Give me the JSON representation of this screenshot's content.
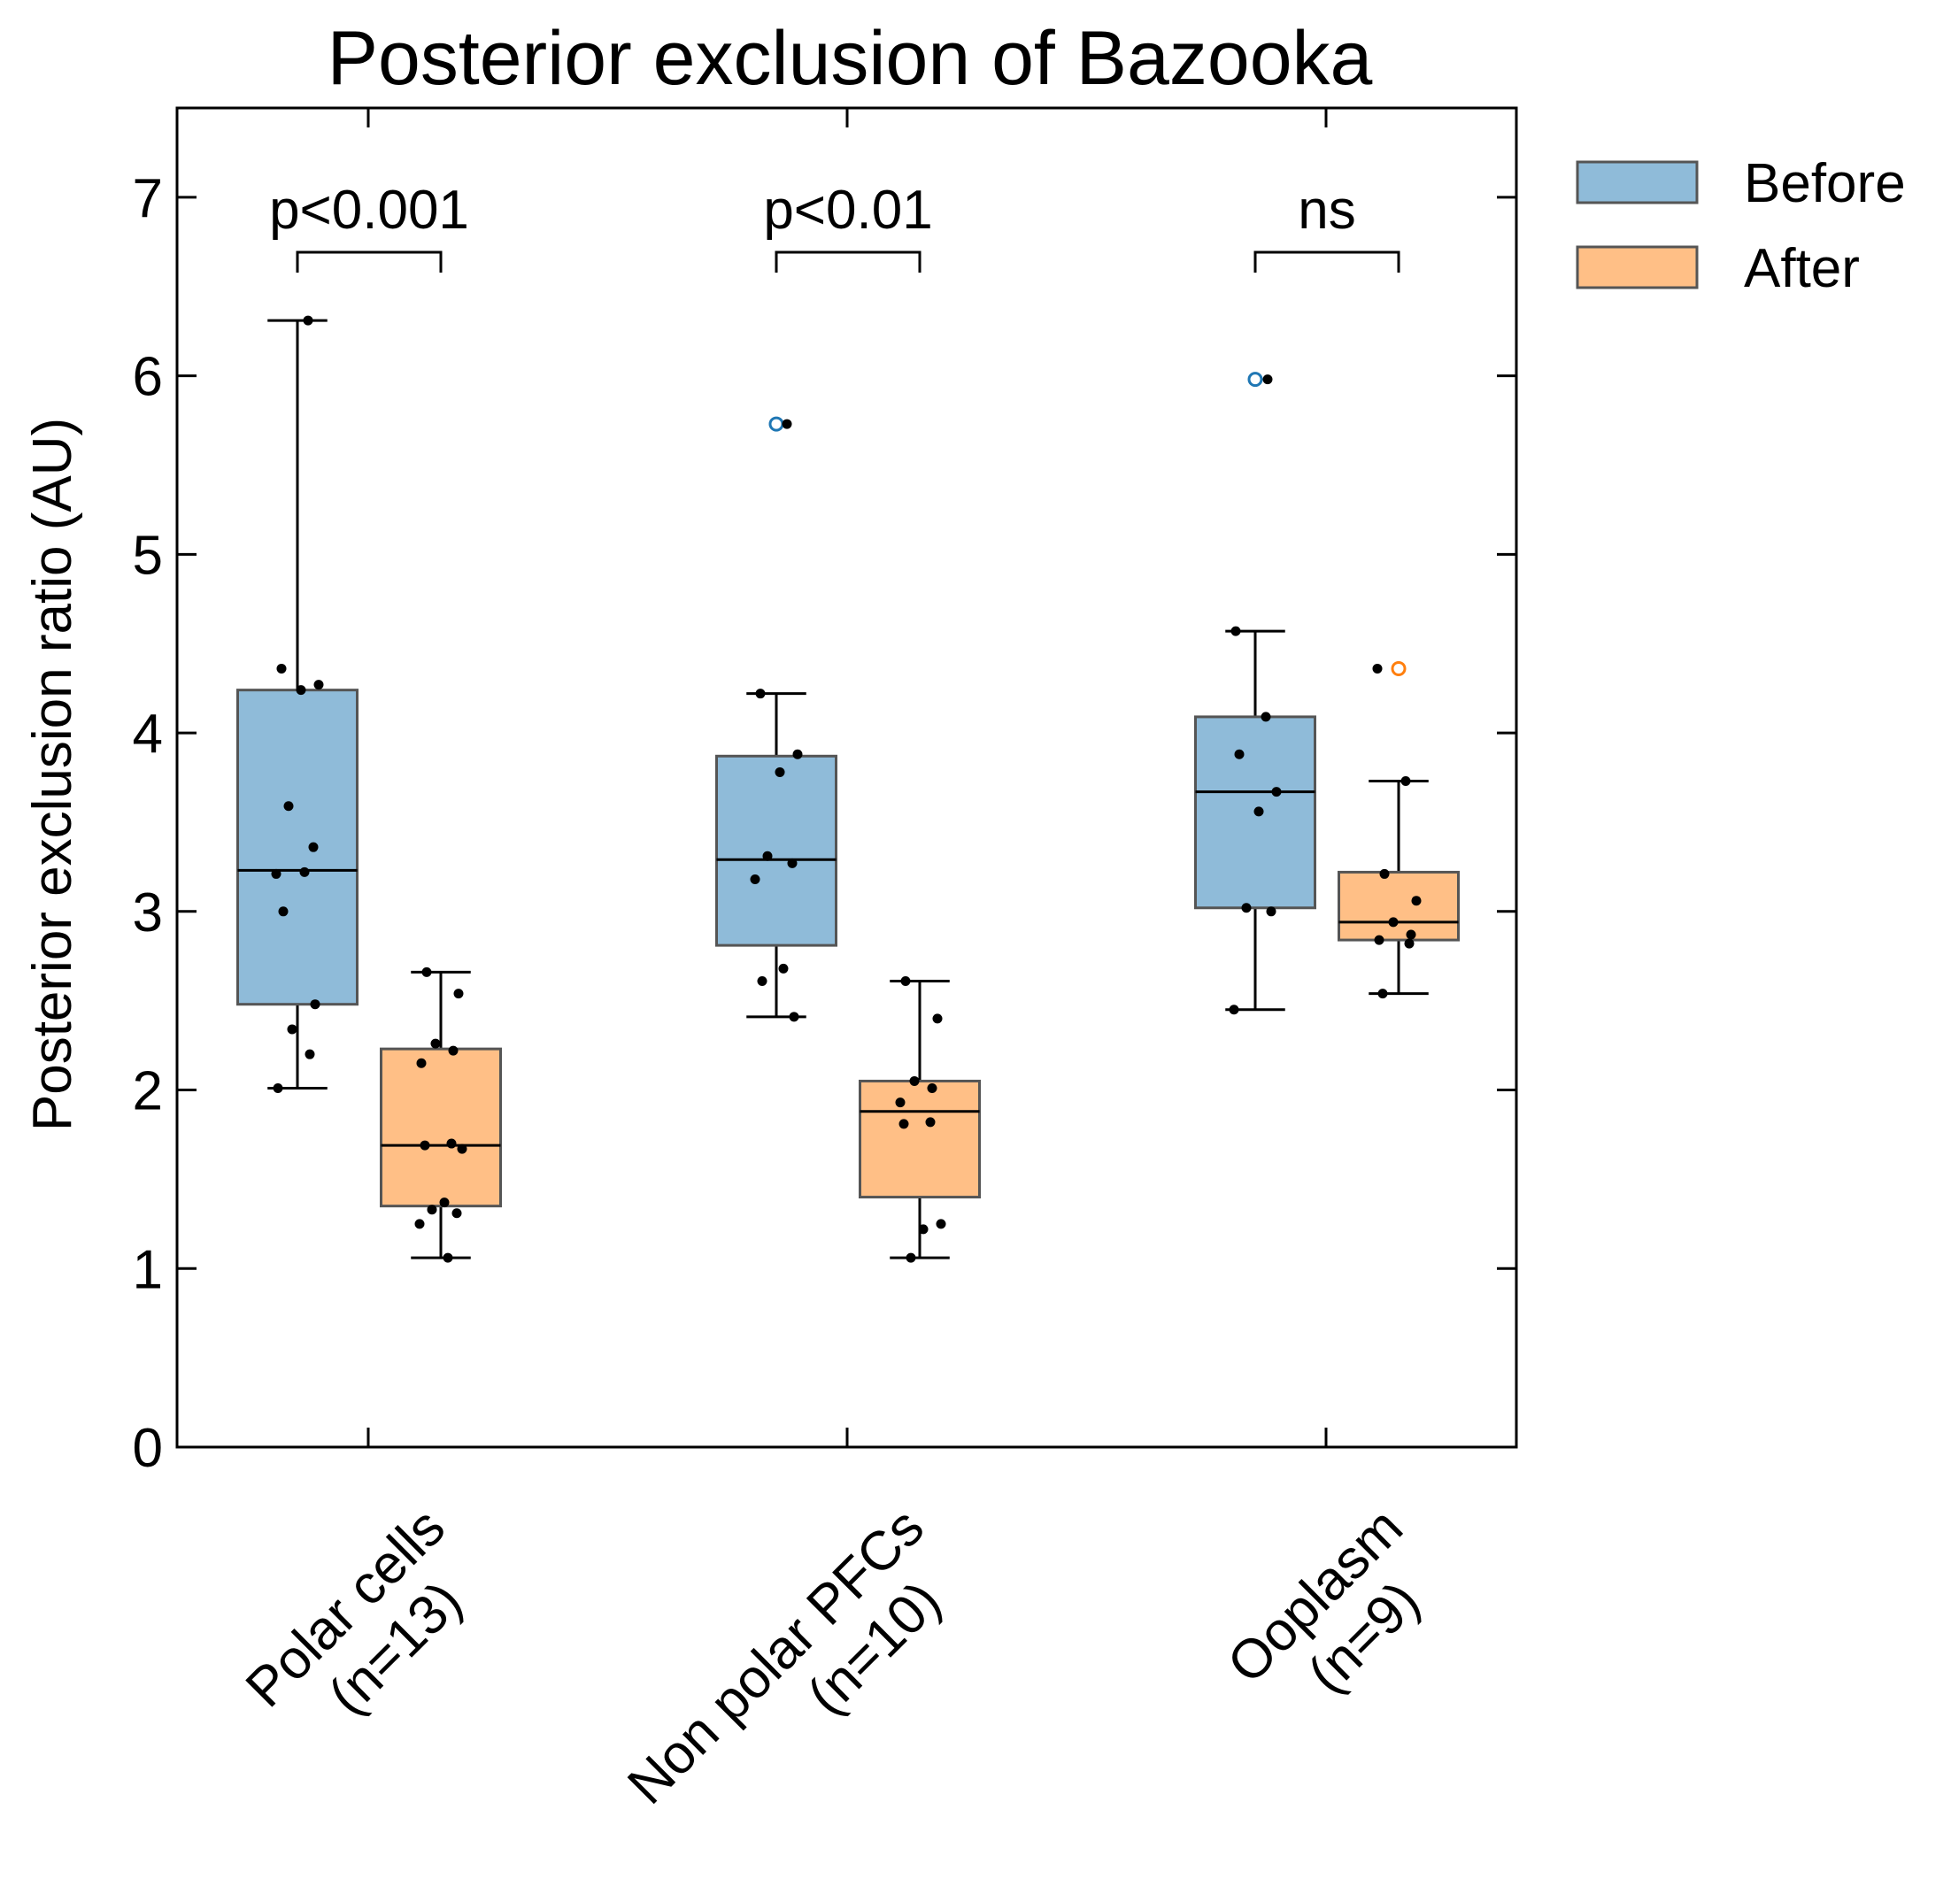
{
  "chart_data": {
    "type": "box",
    "title": "Posterior exclusion of Bazooka",
    "xlabel": "",
    "ylabel": "Posterior exclusion ratio (AU)",
    "ylim": [
      0,
      7.5
    ],
    "yticks": [
      0,
      1,
      2,
      3,
      4,
      5,
      6,
      7
    ],
    "grid": false,
    "legend_position": "outside-top-right",
    "categories": [
      {
        "line1": "Polar cells",
        "line2": "(n=13)"
      },
      {
        "line1": "Non polar PFCs",
        "line2": "(n=10)"
      },
      {
        "line1": "Ooplasm",
        "line2": "(n=9)"
      }
    ],
    "series": [
      {
        "name": "Before",
        "color": "#1f77b4",
        "boxes": [
          {
            "whisker_low": 2.01,
            "q1": 2.48,
            "median": 3.23,
            "q3": 4.24,
            "whisker_high": 6.31,
            "outliers": [],
            "points": [
              2.01,
              2.2,
              2.34,
              2.48,
              3.0,
              3.22,
              3.21,
              3.36,
              3.59,
              4.24,
              4.27,
              4.36,
              6.31
            ]
          },
          {
            "whisker_low": 2.41,
            "q1": 2.81,
            "median": 3.29,
            "q3": 3.87,
            "whisker_high": 4.22,
            "outliers": [
              5.73
            ],
            "points": [
              2.41,
              2.61,
              2.68,
              3.18,
              3.27,
              3.31,
              3.78,
              3.88,
              4.22,
              5.73
            ]
          },
          {
            "whisker_low": 2.45,
            "q1": 3.02,
            "median": 3.67,
            "q3": 4.09,
            "whisker_high": 4.57,
            "outliers": [
              5.98
            ],
            "points": [
              2.45,
              3.0,
              3.02,
              3.56,
              3.67,
              3.88,
              4.09,
              4.57,
              5.98
            ]
          }
        ]
      },
      {
        "name": "After",
        "color": "#ff7f0e",
        "boxes": [
          {
            "whisker_low": 1.06,
            "q1": 1.35,
            "median": 1.69,
            "q3": 2.23,
            "whisker_high": 2.66,
            "outliers": [],
            "points": [
              1.06,
              1.25,
              1.31,
              1.33,
              1.37,
              1.67,
              1.69,
              1.7,
              2.15,
              2.22,
              2.26,
              2.54,
              2.66
            ]
          },
          {
            "whisker_low": 1.06,
            "q1": 1.4,
            "median": 1.88,
            "q3": 2.05,
            "whisker_high": 2.61,
            "outliers": [],
            "points": [
              1.06,
              1.22,
              1.25,
              1.81,
              1.82,
              1.93,
              2.01,
              2.05,
              2.4,
              2.61
            ]
          },
          {
            "whisker_low": 2.54,
            "q1": 2.84,
            "median": 2.94,
            "q3": 3.22,
            "whisker_high": 3.73,
            "outliers": [
              4.36
            ],
            "points": [
              2.54,
              2.82,
              2.84,
              2.87,
              2.94,
              3.06,
              3.21,
              3.73,
              4.36
            ]
          }
        ]
      }
    ],
    "significance": [
      "p<0.001",
      "p<0.01",
      "ns"
    ]
  }
}
